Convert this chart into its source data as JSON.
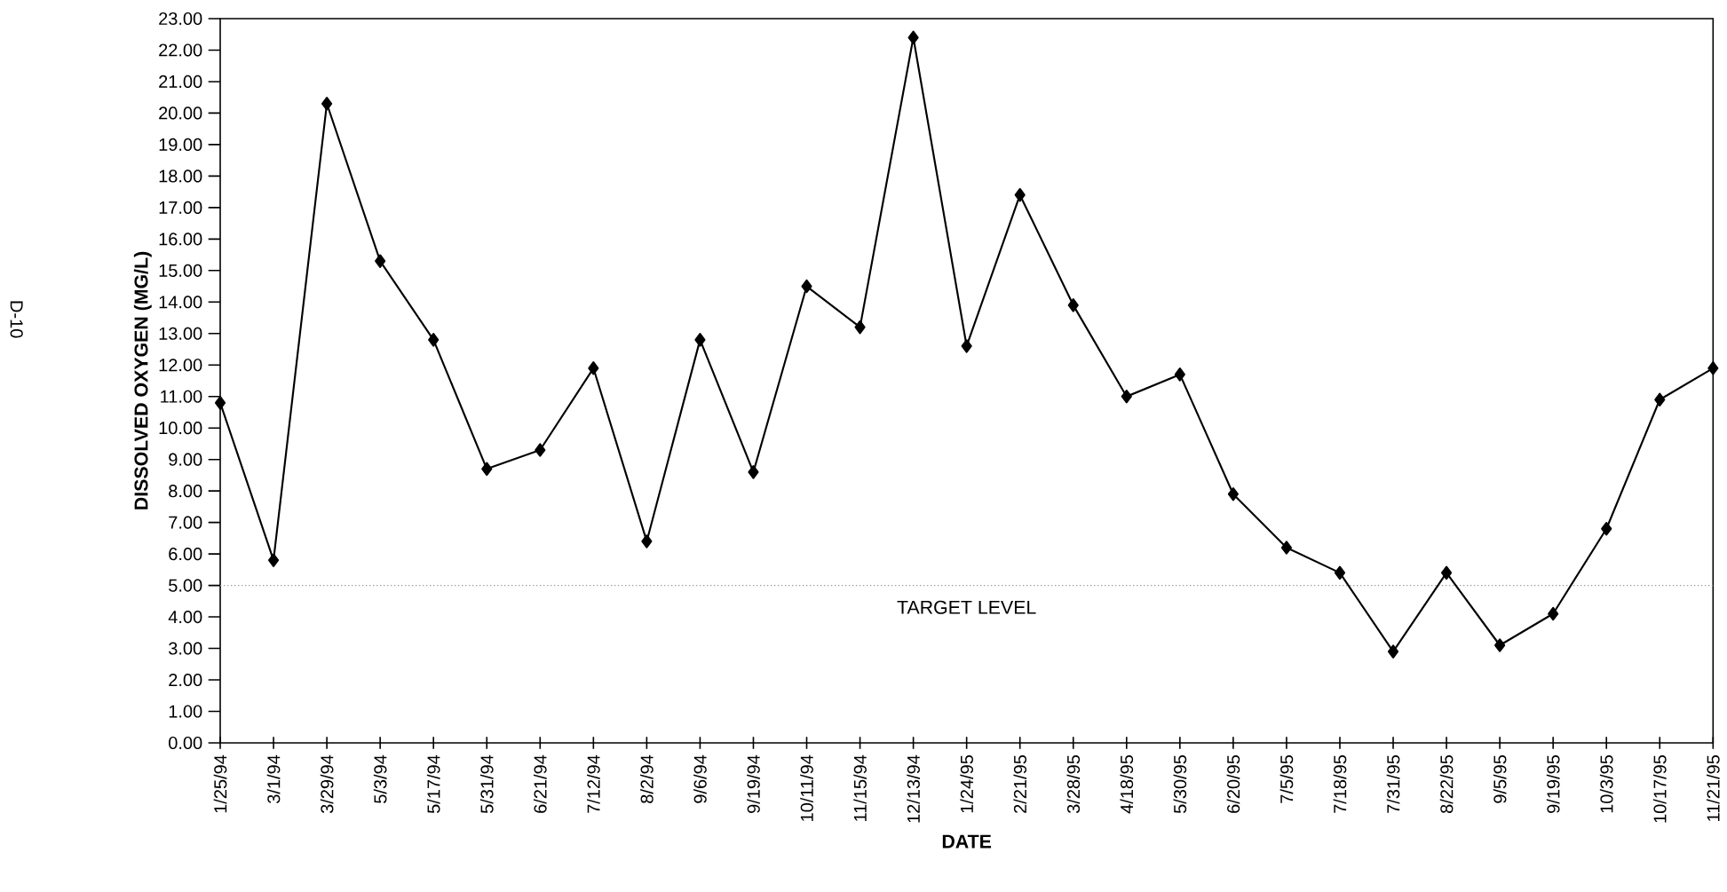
{
  "chart_data": {
    "type": "line",
    "xlabel": "DATE",
    "ylabel": "DISSOLVED OXYGEN (MG/L)",
    "categories": [
      "1/25/94",
      "3/1/94",
      "3/29/94",
      "5/3/94",
      "5/17/94",
      "5/31/94",
      "6/21/94",
      "7/12/94",
      "8/2/94",
      "9/6/94",
      "9/19/94",
      "10/11/94",
      "11/15/94",
      "12/13/94",
      "1/24/95",
      "2/21/95",
      "3/28/95",
      "4/18/95",
      "5/30/95",
      "6/20/95",
      "7/5/95",
      "7/18/95",
      "7/31/95",
      "8/22/95",
      "9/5/95",
      "9/19/95",
      "10/3/95",
      "10/17/95",
      "11/21/95"
    ],
    "series": [
      {
        "color": "#000000",
        "values": [
          10.8,
          5.8,
          20.3,
          15.3,
          12.8,
          8.7,
          9.3,
          11.9,
          6.4,
          12.8,
          8.6,
          14.5,
          13.2,
          22.4,
          12.6,
          17.4,
          13.9,
          11.0,
          11.7,
          7.9,
          6.2,
          5.4,
          2.9,
          5.4,
          3.1,
          4.1,
          6.8,
          10.9,
          11.9
        ]
      }
    ],
    "ylim": [
      0,
      23
    ],
    "yticks": [
      {
        "value": 0,
        "label": "0.00"
      },
      {
        "value": 1,
        "label": "1.00"
      },
      {
        "value": 2,
        "label": "2.00"
      },
      {
        "value": 3,
        "label": "3.00"
      },
      {
        "value": 4,
        "label": "4.00"
      },
      {
        "value": 5,
        "label": "5.00"
      },
      {
        "value": 6,
        "label": "6.00"
      },
      {
        "value": 7,
        "label": "7.00"
      },
      {
        "value": 8,
        "label": "8.00"
      },
      {
        "value": 9,
        "label": "9.00"
      },
      {
        "value": 10,
        "label": "10.00"
      },
      {
        "value": 11,
        "label": "11.00"
      },
      {
        "value": 12,
        "label": "12.00"
      },
      {
        "value": 13,
        "label": "13.00"
      },
      {
        "value": 14,
        "label": "14.00"
      },
      {
        "value": 15,
        "label": "15.00"
      },
      {
        "value": 16,
        "label": "16.00"
      },
      {
        "value": 17,
        "label": "17.00"
      },
      {
        "value": 18,
        "label": "18.00"
      },
      {
        "value": 19,
        "label": "19.00"
      },
      {
        "value": 20,
        "label": "20.00"
      },
      {
        "value": 21,
        "label": "21.00"
      },
      {
        "value": 22,
        "label": "22.00"
      },
      {
        "value": 23,
        "label": "23.00"
      }
    ],
    "ref_lines": [
      {
        "axis": "y",
        "value": 5,
        "label": "TARGET LEVEL",
        "color": "#9a9a9a",
        "line_style": "dotted"
      }
    ],
    "marker": "diamond",
    "line_style": "solid",
    "grid": false,
    "annotations": [
      "D-10"
    ]
  }
}
